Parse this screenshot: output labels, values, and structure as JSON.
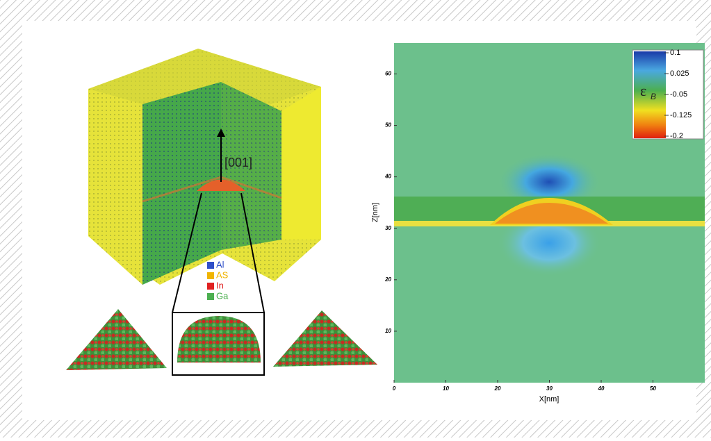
{
  "structure_model": {
    "direction_label": "[001]",
    "legend": [
      {
        "label": "Al",
        "color": "#2f4fc8"
      },
      {
        "label": "AS",
        "color": "#f0b400"
      },
      {
        "label": "In",
        "color": "#e02020"
      },
      {
        "label": "Ga",
        "color": "#4caf50"
      }
    ]
  },
  "strain_map": {
    "xlabel": "X[nm]",
    "ylabel": "Z[nm]",
    "xlim": [
      0,
      60
    ],
    "ylim": [
      0,
      66
    ],
    "xticks": [
      0,
      10,
      20,
      30,
      40,
      50
    ],
    "yticks": [
      10,
      20,
      30,
      40,
      50,
      60
    ],
    "colorbar": {
      "symbol": "ε",
      "subscript": "B",
      "lim": [
        -0.2,
        0.1
      ],
      "ticks": [
        0.1,
        0.025,
        -0.05,
        -0.125,
        -0.2
      ]
    }
  }
}
